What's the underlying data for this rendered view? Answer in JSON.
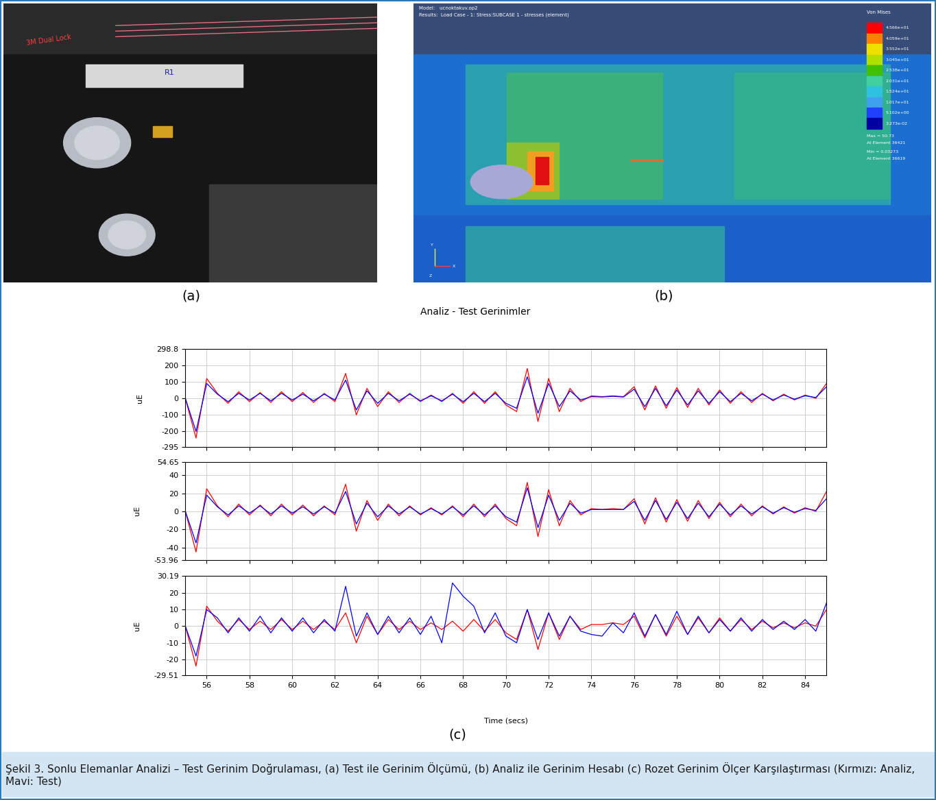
{
  "title": "Analiz - Test Gerinimler",
  "panels": {
    "a": {
      "label": "(a)",
      "texts": [
        "3M Dual Lock",
        "R1"
      ]
    },
    "b": {
      "label": "(b)",
      "model_text": "Model:   ucnoktakuv.op2",
      "results_text": "Results:  Load Case - 1: Stress:SUBCASE 1 - stresses (element)",
      "legend_title": "Von Mises",
      "legend_values": [
        "4.566e+01",
        "4.059e+01",
        "3.552e+01",
        "3.045e+01",
        "2.538e+01",
        "2.031e+01",
        "1.524e+01",
        "1.017e+01",
        "5.102e+00",
        "3.273e-02"
      ],
      "max_text": "Max = 50.73",
      "max_element_text": "At Element 36421",
      "min_text": "Min = 0.03273",
      "min_element_text": "At Element 36619",
      "axes": [
        "Y",
        "X",
        "Z"
      ]
    },
    "c": {
      "label": "(c)"
    }
  },
  "caption": "Şekil 3. Sonlu Elemanlar Analizi – Test Gerinim Doğrulaması, (a) Test ile Gerinim Ölçümü, (b) Analiz ile Gerinim Hesabı (c) Rozet Gerinim Ölçer Karşılaştırması (Kırmızı: Analiz, Mavi: Test)",
  "chart_data": [
    {
      "type": "line",
      "ylabel": "uE",
      "grid": true,
      "tick_labels": "y",
      "x": [
        55,
        55.5,
        56,
        56.5,
        57,
        57.5,
        58,
        58.5,
        59,
        59.5,
        60,
        60.5,
        61,
        61.5,
        62,
        62.5,
        63,
        63.5,
        64,
        64.5,
        65,
        65.5,
        66,
        66.5,
        67,
        67.5,
        68,
        68.5,
        69,
        69.5,
        70,
        70.5,
        71,
        71.5,
        72,
        72.5,
        73,
        73.5,
        74,
        74.5,
        75,
        75.5,
        76,
        76.5,
        77,
        77.5,
        78,
        78.5,
        79,
        79.5,
        80,
        80.5,
        81,
        81.5,
        82,
        82.5,
        83,
        83.5,
        84,
        84.5,
        85
      ],
      "xlim": [
        55,
        85
      ],
      "xticks": [
        56,
        58,
        60,
        62,
        64,
        66,
        68,
        70,
        72,
        74,
        76,
        78,
        80,
        82,
        84
      ],
      "ylim": [
        -295,
        298.8
      ],
      "yticks": [
        -295,
        -200,
        -100,
        0,
        100,
        200,
        298.8
      ],
      "series": [
        {
          "color": "#ff0000",
          "values": [
            0,
            -240,
            120,
            30,
            -30,
            40,
            -20,
            35,
            -25,
            40,
            -20,
            35,
            -25,
            30,
            -20,
            150,
            -100,
            60,
            -50,
            40,
            -25,
            30,
            -20,
            20,
            -20,
            30,
            -30,
            40,
            -30,
            40,
            -40,
            -80,
            180,
            -140,
            120,
            -80,
            60,
            -20,
            15,
            10,
            15,
            10,
            70,
            -70,
            75,
            -60,
            65,
            -55,
            60,
            -40,
            50,
            -30,
            40,
            -25,
            30,
            -15,
            25,
            -10,
            20,
            0,
            90
          ]
        },
        {
          "color": "#0000ff",
          "values": [
            0,
            -200,
            90,
            25,
            -20,
            30,
            -10,
            30,
            -15,
            30,
            -10,
            25,
            -15,
            25,
            -10,
            110,
            -70,
            45,
            -30,
            30,
            -15,
            25,
            -15,
            15,
            -15,
            25,
            -20,
            30,
            -20,
            30,
            -30,
            -60,
            130,
            -90,
            90,
            -50,
            45,
            -10,
            10,
            8,
            12,
            8,
            55,
            -50,
            60,
            -45,
            50,
            -40,
            45,
            -30,
            40,
            -20,
            30,
            -15,
            25,
            -10,
            20,
            -5,
            15,
            5,
            70
          ]
        }
      ]
    },
    {
      "type": "line",
      "ylabel": "uE",
      "grid": true,
      "tick_labels": "y",
      "x": [
        55,
        55.5,
        56,
        56.5,
        57,
        57.5,
        58,
        58.5,
        59,
        59.5,
        60,
        60.5,
        61,
        61.5,
        62,
        62.5,
        63,
        63.5,
        64,
        64.5,
        65,
        65.5,
        66,
        66.5,
        67,
        67.5,
        68,
        68.5,
        69,
        69.5,
        70,
        70.5,
        71,
        71.5,
        72,
        72.5,
        73,
        73.5,
        74,
        74.5,
        75,
        75.5,
        76,
        76.5,
        77,
        77.5,
        78,
        78.5,
        79,
        79.5,
        80,
        80.5,
        81,
        81.5,
        82,
        82.5,
        83,
        83.5,
        84,
        84.5,
        85
      ],
      "xlim": [
        55,
        85
      ],
      "xticks": [
        56,
        58,
        60,
        62,
        64,
        66,
        68,
        70,
        72,
        74,
        76,
        78,
        80,
        82,
        84
      ],
      "ylim": [
        -53.96,
        54.65
      ],
      "yticks": [
        -53.96,
        -40,
        -20,
        0,
        20,
        40,
        54.65
      ],
      "series": [
        {
          "color": "#ff0000",
          "values": [
            0,
            -45,
            25,
            6,
            -6,
            8,
            -4,
            7,
            -5,
            8,
            -4,
            7,
            -5,
            6,
            -4,
            30,
            -22,
            12,
            -10,
            8,
            -5,
            6,
            -4,
            4,
            -4,
            6,
            -6,
            8,
            -6,
            8,
            -8,
            -16,
            32,
            -28,
            24,
            -16,
            12,
            -4,
            3,
            2,
            3,
            2,
            14,
            -14,
            15,
            -12,
            13,
            -11,
            12,
            -8,
            10,
            -6,
            8,
            -5,
            6,
            -3,
            5,
            -2,
            4,
            0,
            22
          ]
        },
        {
          "color": "#0000ff",
          "values": [
            0,
            -35,
            18,
            5,
            -4,
            6,
            -2,
            6,
            -3,
            6,
            -2,
            5,
            -3,
            5,
            -2,
            22,
            -14,
            9,
            -6,
            6,
            -3,
            5,
            -3,
            3,
            -3,
            5,
            -4,
            6,
            -4,
            6,
            -6,
            -12,
            26,
            -18,
            18,
            -10,
            9,
            -2,
            2,
            2,
            2,
            2,
            11,
            -10,
            12,
            -9,
            10,
            -8,
            9,
            -6,
            8,
            -4,
            6,
            -3,
            5,
            -2,
            4,
            -1,
            3,
            1,
            14
          ]
        }
      ]
    },
    {
      "type": "line",
      "ylabel": "uE",
      "xlabel": "Time (secs)",
      "grid": true,
      "x": [
        55,
        55.5,
        56,
        56.5,
        57,
        57.5,
        58,
        58.5,
        59,
        59.5,
        60,
        60.5,
        61,
        61.5,
        62,
        62.5,
        63,
        63.5,
        64,
        64.5,
        65,
        65.5,
        66,
        66.5,
        67,
        67.5,
        68,
        68.5,
        69,
        69.5,
        70,
        70.5,
        71,
        71.5,
        72,
        72.5,
        73,
        73.5,
        74,
        74.5,
        75,
        75.5,
        76,
        76.5,
        77,
        77.5,
        78,
        78.5,
        79,
        79.5,
        80,
        80.5,
        81,
        81.5,
        82,
        82.5,
        83,
        83.5,
        84,
        84.5,
        85
      ],
      "xlim": [
        55,
        85
      ],
      "xticks": [
        56,
        58,
        60,
        62,
        64,
        66,
        68,
        70,
        72,
        74,
        76,
        78,
        80,
        82,
        84
      ],
      "ylim": [
        -29.51,
        30.19
      ],
      "yticks": [
        -29.51,
        -20,
        -10,
        0,
        10,
        20,
        30.19
      ],
      "series": [
        {
          "color": "#ff0000",
          "values": [
            0,
            -24,
            12,
            3,
            -3,
            4,
            -2,
            3,
            -2,
            4,
            -2,
            3,
            -2,
            3,
            -2,
            8,
            -10,
            6,
            -5,
            4,
            -2,
            3,
            -2,
            2,
            -2,
            3,
            -3,
            4,
            -3,
            4,
            -4,
            -8,
            10,
            -14,
            8,
            -8,
            6,
            -2,
            1,
            1,
            2,
            1,
            6,
            -7,
            7,
            -6,
            6,
            -5,
            5,
            -4,
            5,
            -3,
            4,
            -2,
            3,
            -1,
            2,
            -1,
            2,
            0,
            10
          ]
        },
        {
          "color": "#0000ff",
          "values": [
            0,
            -18,
            10,
            5,
            -4,
            5,
            -3,
            6,
            -4,
            5,
            -3,
            5,
            -4,
            4,
            -3,
            24,
            -6,
            8,
            -5,
            6,
            -4,
            5,
            -5,
            6,
            -10,
            26,
            18,
            12,
            -4,
            8,
            -6,
            -10,
            10,
            -8,
            8,
            -6,
            6,
            -3,
            -5,
            -6,
            2,
            -4,
            8,
            -6,
            7,
            -5,
            9,
            -5,
            6,
            -4,
            4,
            -3,
            5,
            -3,
            4,
            -2,
            3,
            -2,
            4,
            -3,
            14
          ]
        }
      ]
    }
  ]
}
